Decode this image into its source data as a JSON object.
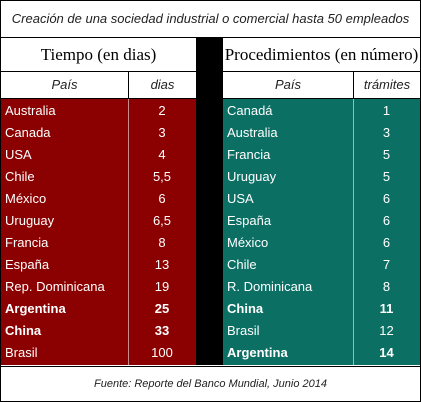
{
  "title": "Creación de una sociedad industrial o comercial hasta 50 empleados",
  "left": {
    "header": "Tiempo (en dias)",
    "col_name": "País",
    "col_value": "dias",
    "rows": [
      {
        "name": "Australia",
        "value": "2",
        "bold": false
      },
      {
        "name": "Canada",
        "value": "3",
        "bold": false
      },
      {
        "name": "USA",
        "value": "4",
        "bold": false
      },
      {
        "name": "Chile",
        "value": "5,5",
        "bold": false
      },
      {
        "name": "México",
        "value": "6",
        "bold": false
      },
      {
        "name": "Uruguay",
        "value": "6,5",
        "bold": false
      },
      {
        "name": "Francia",
        "value": "8",
        "bold": false
      },
      {
        "name": "España",
        "value": "13",
        "bold": false
      },
      {
        "name": "Rep. Dominicana",
        "value": "19",
        "bold": false
      },
      {
        "name": "Argentina",
        "value": "25",
        "bold": true
      },
      {
        "name": "China",
        "value": "33",
        "bold": true
      },
      {
        "name": "Brasil",
        "value": "100",
        "bold": false
      }
    ],
    "color": "#8b0000"
  },
  "right": {
    "header": "Procedimientos (en número)",
    "col_name": "País",
    "col_value": "trámites",
    "rows": [
      {
        "name": "Canadá",
        "value": "1",
        "bold": false
      },
      {
        "name": "Australia",
        "value": "3",
        "bold": false
      },
      {
        "name": "Francia",
        "value": "5",
        "bold": false
      },
      {
        "name": "Uruguay",
        "value": "5",
        "bold": false
      },
      {
        "name": "USA",
        "value": "6",
        "bold": false
      },
      {
        "name": "España",
        "value": "6",
        "bold": false
      },
      {
        "name": "México",
        "value": "6",
        "bold": false
      },
      {
        "name": "Chile",
        "value": "7",
        "bold": false
      },
      {
        "name": "R. Dominicana",
        "value": "8",
        "bold": false
      },
      {
        "name": "China",
        "value": "11",
        "bold": true
      },
      {
        "name": "Brasil",
        "value": "12",
        "bold": false
      },
      {
        "name": "Argentina",
        "value": "14",
        "bold": true
      }
    ],
    "color": "#0b6f63"
  },
  "footer": "Fuente: Reporte del Banco Mundial, Junio 2014"
}
